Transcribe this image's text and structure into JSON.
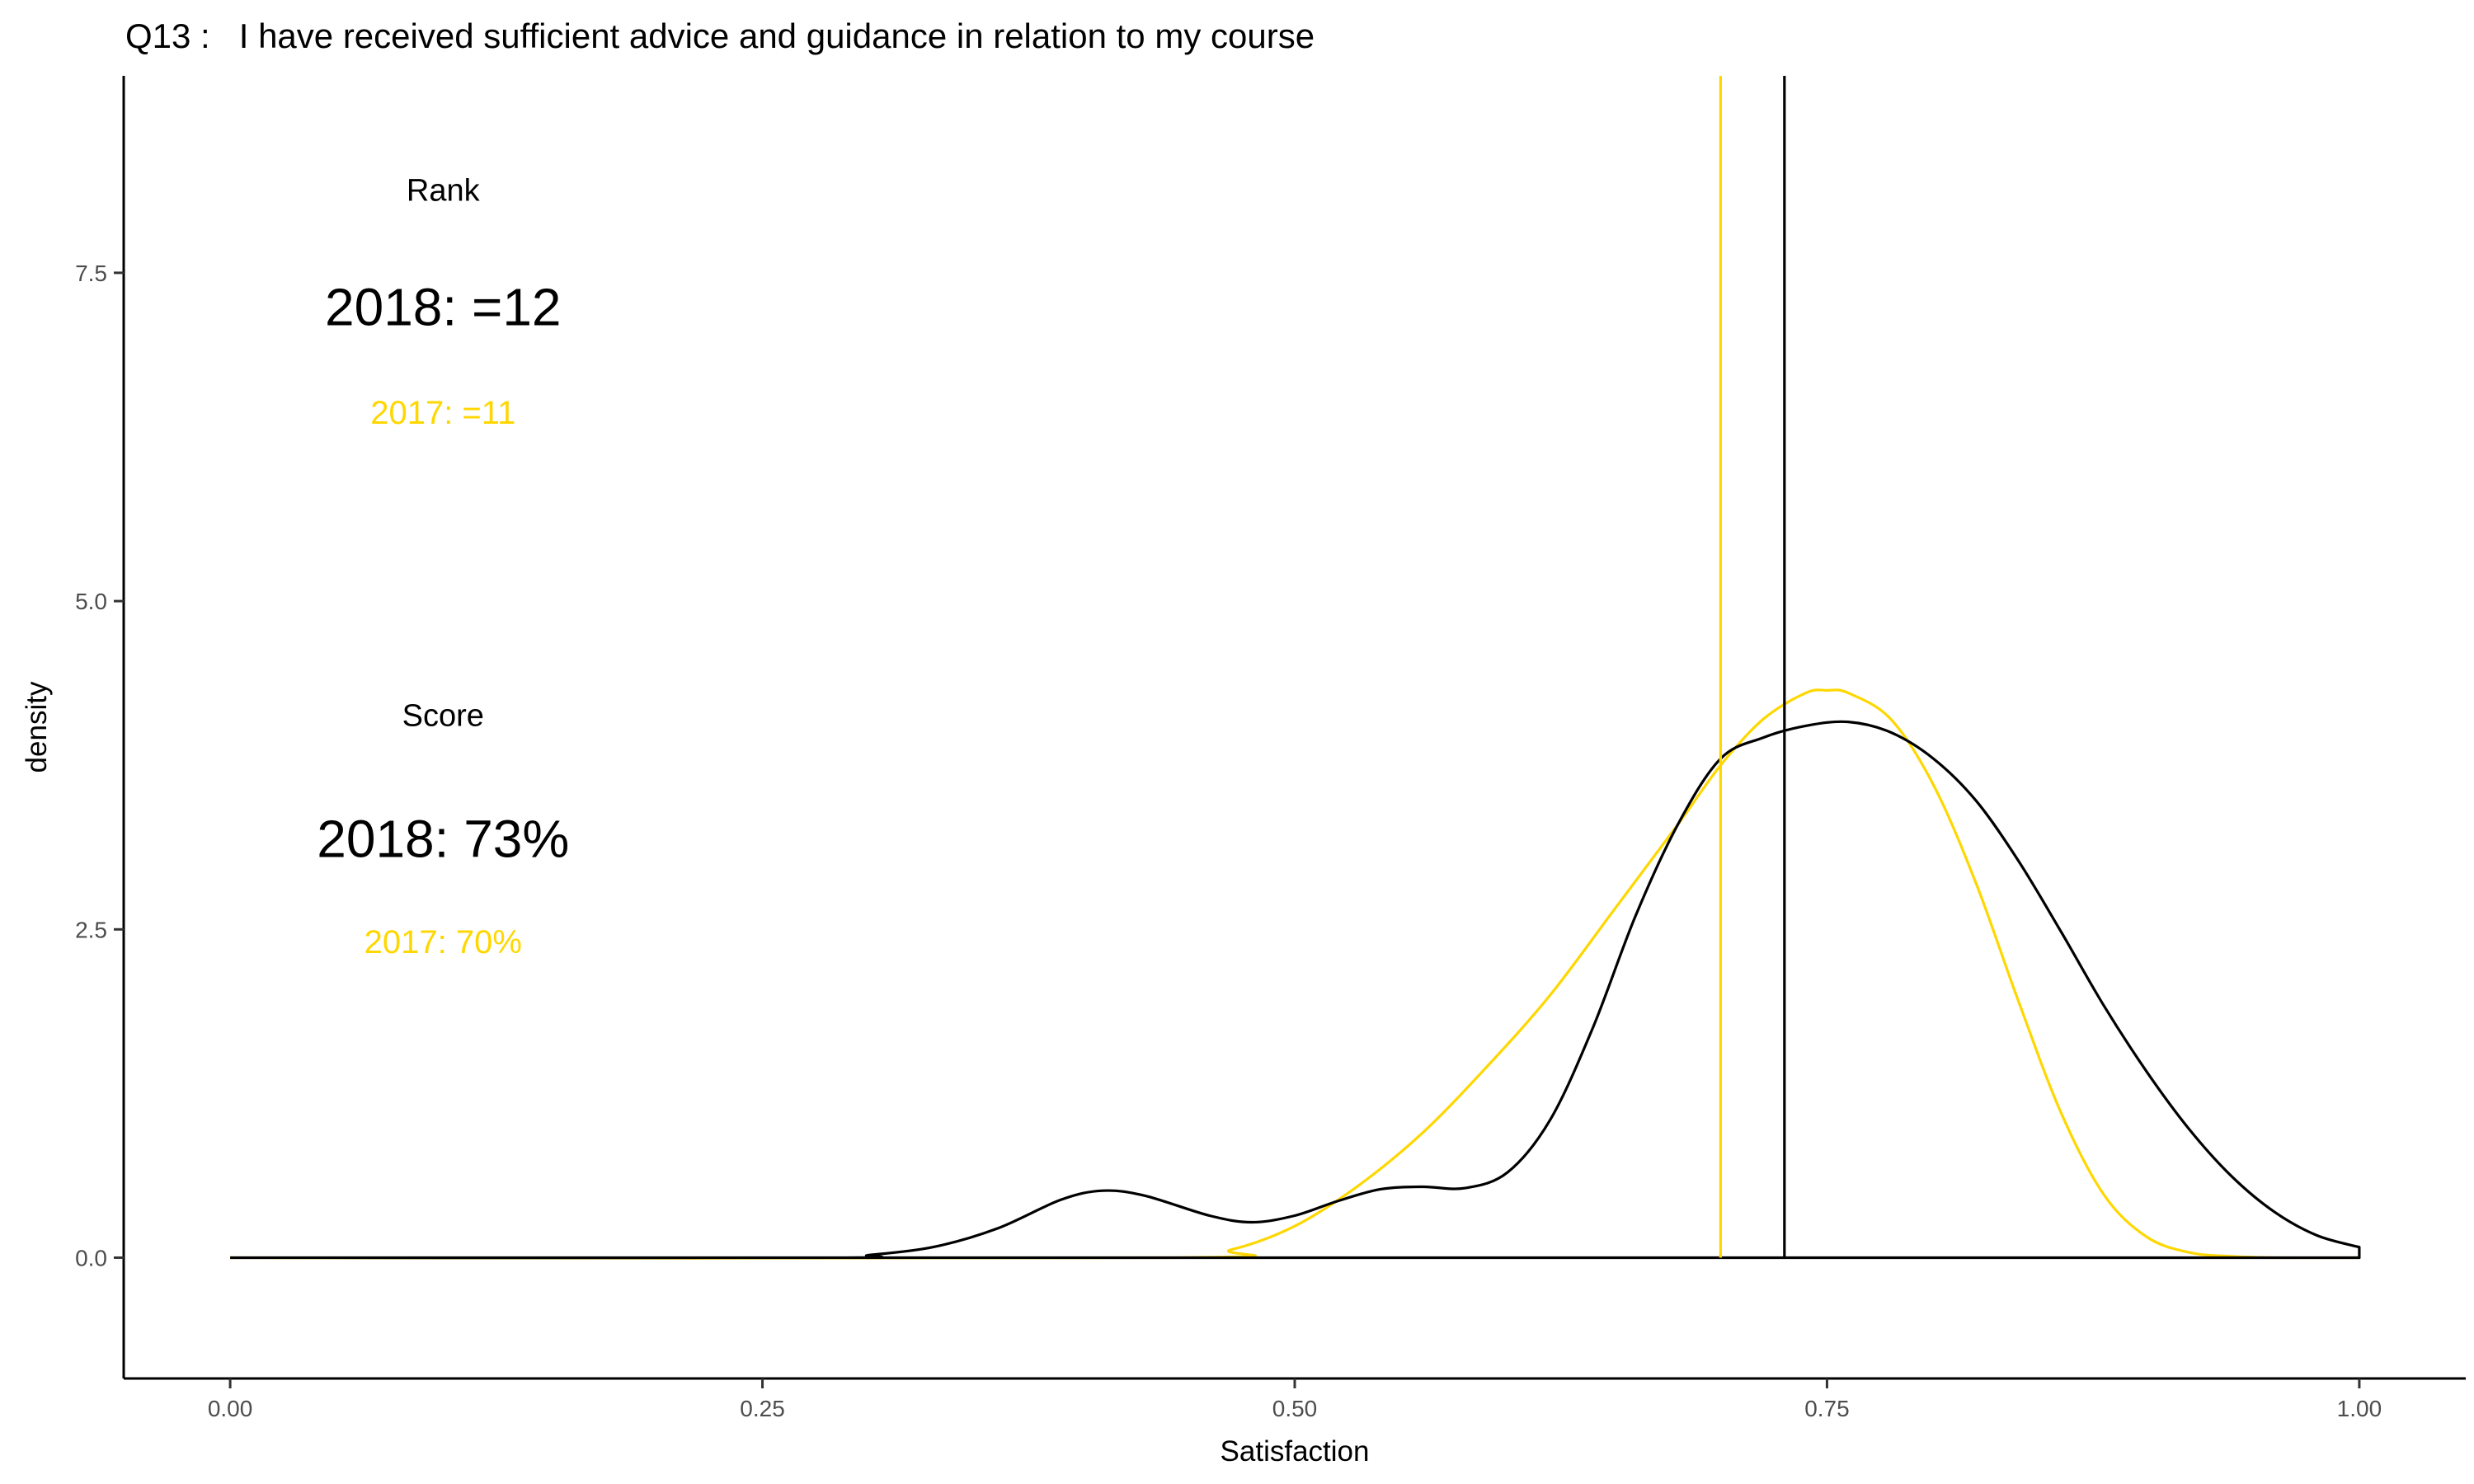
{
  "chart_data": {
    "type": "line",
    "title": "Q13 :   I have received sufficient advice and guidance in relation to my course",
    "xlabel": "Satisfaction",
    "ylabel": "density",
    "xlim": [
      -0.05,
      1.05
    ],
    "ylim": [
      -0.92,
      9.0
    ],
    "x_ticks": [
      0.0,
      0.25,
      0.5,
      0.75,
      1.0
    ],
    "x_tick_labels": [
      "0.00",
      "0.25",
      "0.50",
      "0.75",
      "1.00"
    ],
    "y_ticks": [
      0.0,
      2.5,
      5.0,
      7.5
    ],
    "y_tick_labels": [
      "0.0",
      "2.5",
      "5.0",
      "7.5"
    ],
    "grid": false,
    "series": [
      {
        "name": "2018",
        "color": "#000000",
        "x": [
          0.0,
          0.28,
          0.3,
          0.33,
          0.36,
          0.39,
          0.41,
          0.43,
          0.46,
          0.48,
          0.5,
          0.52,
          0.54,
          0.56,
          0.58,
          0.6,
          0.62,
          0.64,
          0.66,
          0.68,
          0.7,
          0.72,
          0.74,
          0.76,
          0.78,
          0.8,
          0.82,
          0.84,
          0.86,
          0.88,
          0.9,
          0.92,
          0.94,
          0.96,
          0.98,
          1.0
        ],
        "y": [
          0.0,
          0.0,
          0.02,
          0.08,
          0.22,
          0.44,
          0.51,
          0.47,
          0.32,
          0.27,
          0.32,
          0.43,
          0.52,
          0.54,
          0.53,
          0.65,
          1.05,
          1.75,
          2.6,
          3.3,
          3.8,
          3.96,
          4.05,
          4.08,
          4.0,
          3.8,
          3.48,
          3.02,
          2.48,
          1.92,
          1.42,
          0.98,
          0.62,
          0.35,
          0.17,
          0.08
        ]
      },
      {
        "name": "2017",
        "color": "#FFD700",
        "x": [
          0.0,
          0.44,
          0.47,
          0.5,
          0.53,
          0.56,
          0.59,
          0.62,
          0.65,
          0.68,
          0.7,
          0.72,
          0.74,
          0.75,
          0.76,
          0.78,
          0.8,
          0.82,
          0.84,
          0.86,
          0.88,
          0.9,
          0.92,
          0.94,
          0.96,
          1.0
        ],
        "y": [
          0.0,
          0.0,
          0.06,
          0.24,
          0.55,
          0.95,
          1.45,
          2.0,
          2.65,
          3.3,
          3.75,
          4.1,
          4.3,
          4.32,
          4.3,
          4.1,
          3.6,
          2.85,
          1.95,
          1.1,
          0.48,
          0.16,
          0.04,
          0.01,
          0.0,
          0.0
        ]
      }
    ],
    "vlines": [
      {
        "name": "2017 score",
        "x": 0.7,
        "color": "#FFD700"
      },
      {
        "name": "2018 score",
        "x": 0.73,
        "color": "#000000"
      }
    ],
    "annotations": {
      "rank_heading": "Rank",
      "rank_2018": "2018: =12",
      "rank_2017": "2017: =11",
      "score_heading": "Score",
      "score_2018": "2018: 73%",
      "score_2017": "2017: 70%",
      "x_position": 0.1,
      "rank_heading_y": 8.05,
      "rank_2018_y": 7.1,
      "rank_2017_y": 6.35,
      "score_heading_y": 4.05,
      "score_2018_y": 3.05,
      "score_2017_y": 2.32,
      "color_2018": "#000000",
      "color_2017": "#FFD700"
    }
  }
}
